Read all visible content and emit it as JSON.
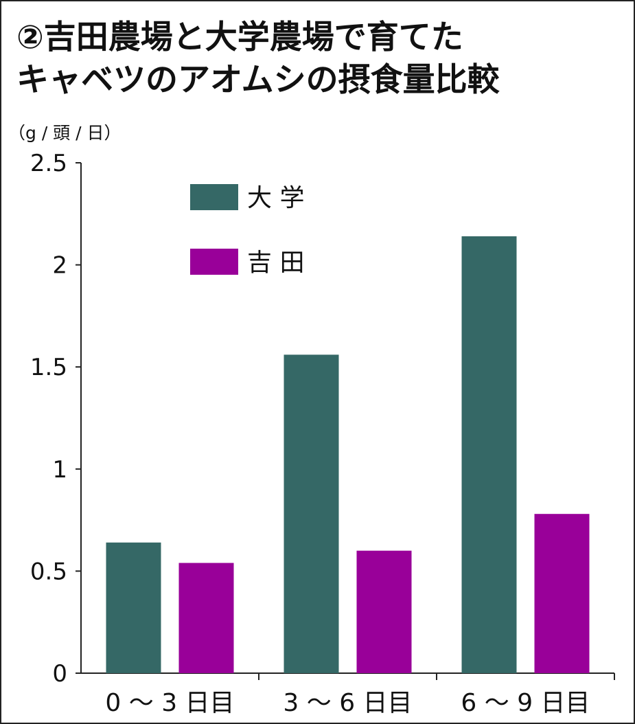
{
  "title_lines": [
    "②吉田農場と大学農場で育てた",
    "キャベツのアオムシの摂食量比較"
  ],
  "colors": {
    "daigaku": "#356866",
    "yoshida": "#990099"
  },
  "chart_data": {
    "type": "bar",
    "ylabel": "（g / 頭 / 日）",
    "xlabel": "",
    "ylim": [
      0,
      2.5
    ],
    "yticks": [
      "0",
      "0.5",
      "1",
      "1.5",
      "2",
      "2.5"
    ],
    "ytick_values": [
      0,
      0.5,
      1,
      1.5,
      2,
      2.5
    ],
    "categories": [
      "0 ～ 3 日目",
      "3 ～ 6 日目",
      "6 ～ 9 日目"
    ],
    "legend_position": "top-left",
    "grid": false,
    "series": [
      {
        "name": "大 学",
        "values": [
          0.64,
          1.56,
          2.14
        ]
      },
      {
        "name": "吉 田",
        "values": [
          0.54,
          0.6,
          0.78
        ]
      }
    ]
  }
}
